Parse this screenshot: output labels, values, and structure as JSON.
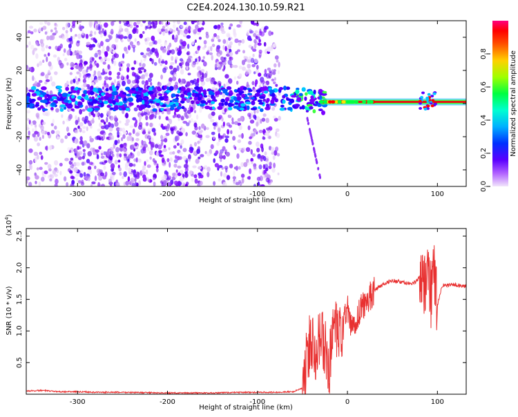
{
  "title": "C2E4.2024.130.10.59.R21",
  "colors": {
    "signal": "#ff0000",
    "speckle": "#7b00ff",
    "line_red": "#e81010",
    "snr_line": "#e83030"
  },
  "chart_data": [
    {
      "type": "heatmap",
      "name": "spectrogram",
      "xlabel": "Height of straight line (km)",
      "ylabel": "Frequency (Hz)",
      "xlim": [
        -357,
        132
      ],
      "ylim": [
        -50,
        50
      ],
      "x_ticks": [
        -300,
        -200,
        -100,
        0,
        100
      ],
      "y_ticks": [
        40,
        20,
        0,
        -20,
        -40
      ],
      "colorbar": {
        "label": "Normalized spectral amplitude",
        "range": [
          0.0,
          1.0
        ],
        "ticks": [
          0.0,
          0.2,
          0.4,
          0.6,
          0.8
        ],
        "colormap": [
          "#e8d4f4",
          "#8a00ff",
          "#3a00ff",
          "#0060ff",
          "#00e0ff",
          "#00ff40",
          "#a0ff00",
          "#ffe000",
          "#ff6000",
          "#ff0000",
          "#ff0080"
        ]
      },
      "features": [
        {
          "label": "carrier_line",
          "x_range": [
            -30,
            132
          ],
          "frequency_hz": 1,
          "amplitude": 0.9
        },
        {
          "label": "fade_band",
          "x_range": [
            -357,
            -30
          ],
          "frequency_hz_range": [
            -10,
            10
          ],
          "amplitude": 0.35
        },
        {
          "label": "scatter_background",
          "x_range": [
            -357,
            -80
          ],
          "frequency_hz_range": [
            -50,
            50
          ],
          "amplitude": 0.15
        }
      ]
    },
    {
      "type": "line",
      "name": "snr",
      "xlabel": "Height of straight line (km)",
      "ylabel": "SNR (10 * v/v)",
      "scale_label": "(x10",
      "scale_exponent": "4",
      "scale_close": ")",
      "xlim": [
        -357,
        132
      ],
      "ylim": [
        0,
        2.62
      ],
      "x_ticks": [
        -300,
        -200,
        -100,
        0,
        100
      ],
      "y_ticks": [
        0.5,
        1.0,
        1.5,
        2.0,
        2.5
      ],
      "series": [
        {
          "x": [
            -357,
            -340,
            -320,
            -300,
            -280,
            -250,
            -200,
            -150,
            -120,
            -100,
            -80,
            -60,
            -50,
            -45,
            -40,
            -35,
            -30,
            -25,
            -20,
            -15,
            -10,
            -5,
            0,
            5,
            10,
            15,
            20,
            25,
            30,
            40,
            50,
            60,
            70,
            75,
            80,
            85,
            88,
            90,
            93,
            95,
            97,
            100,
            105,
            110,
            120,
            132
          ],
          "y": [
            0.05,
            0.06,
            0.04,
            0.04,
            0.03,
            0.03,
            0.02,
            0.02,
            0.03,
            0.03,
            0.03,
            0.04,
            0.1,
            0.55,
            0.9,
            0.75,
            0.95,
            0.7,
            0.45,
            1.05,
            0.85,
            1.05,
            1.35,
            1.0,
            1.2,
            1.35,
            1.45,
            1.55,
            1.65,
            1.74,
            1.8,
            1.77,
            1.75,
            1.76,
            1.85,
            1.7,
            1.95,
            2.1,
            1.5,
            2.3,
            1.7,
            1.4,
            1.72,
            1.72,
            1.73,
            1.7
          ]
        }
      ]
    }
  ]
}
